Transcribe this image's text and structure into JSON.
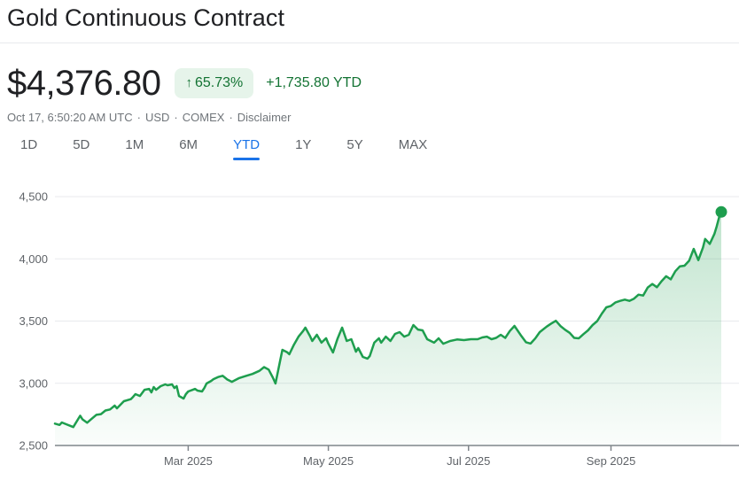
{
  "header": {
    "title": "Gold Continuous Contract"
  },
  "quote": {
    "price": "$4,376.80",
    "up_arrow": "↑",
    "change_percent": "65.73%",
    "change_absolute_ytd": "+1,735.80 YTD"
  },
  "meta": {
    "timestamp": "Oct 17, 6:50:20 AM UTC",
    "dot": "·",
    "currency": "USD",
    "exchange": "COMEX",
    "disclaimer_label": "Disclaimer"
  },
  "ranges": [
    {
      "id": "1d",
      "label": "1D",
      "active": false
    },
    {
      "id": "5d",
      "label": "5D",
      "active": false
    },
    {
      "id": "1m",
      "label": "1M",
      "active": false
    },
    {
      "id": "6m",
      "label": "6M",
      "active": false
    },
    {
      "id": "ytd",
      "label": "YTD",
      "active": true
    },
    {
      "id": "1y",
      "label": "1Y",
      "active": false
    },
    {
      "id": "5y",
      "label": "5Y",
      "active": false
    },
    {
      "id": "max",
      "label": "MAX",
      "active": false
    }
  ],
  "colors": {
    "accent_blue": "#1a73e8",
    "green_text": "#137333",
    "badge_bg": "#e6f4ea",
    "text_primary": "#202124",
    "text_secondary": "#5f6368",
    "text_tertiary": "#70757a",
    "grid": "#e8eaed",
    "axis": "#80868b"
  },
  "chart_data": {
    "type": "area",
    "series_name": "Gold Continuous Contract YTD",
    "x_unit": "day_of_year_2025",
    "x_domain": [
      2,
      292
    ],
    "ylim": [
      2500,
      4500
    ],
    "grid": true,
    "line_color": "#1e9e4e",
    "fill_top": "rgba(30,158,78,0.28)",
    "fill_bottom": "rgba(30,158,78,0.02)",
    "y_ticks": [
      {
        "value": 2500,
        "label": "2,500"
      },
      {
        "value": 3000,
        "label": "3,000"
      },
      {
        "value": 3500,
        "label": "3,500"
      },
      {
        "value": 4000,
        "label": "4,000"
      },
      {
        "value": 4500,
        "label": "4,500"
      }
    ],
    "x_ticks": [
      {
        "day": 60,
        "label": "Mar 2025"
      },
      {
        "day": 121,
        "label": "May 2025"
      },
      {
        "day": 182,
        "label": "Jul 2025"
      },
      {
        "day": 244,
        "label": "Sep 2025"
      }
    ],
    "last_point": {
      "day": 292,
      "value": 4376.8,
      "label": "$4,376.80"
    },
    "points": [
      [
        2,
        2676
      ],
      [
        4,
        2665
      ],
      [
        5,
        2685
      ],
      [
        7,
        2670
      ],
      [
        9,
        2655
      ],
      [
        10,
        2648
      ],
      [
        13,
        2739
      ],
      [
        14,
        2710
      ],
      [
        16,
        2683
      ],
      [
        18,
        2715
      ],
      [
        20,
        2746
      ],
      [
        22,
        2752
      ],
      [
        24,
        2781
      ],
      [
        26,
        2790
      ],
      [
        28,
        2820
      ],
      [
        29,
        2799
      ],
      [
        32,
        2856
      ],
      [
        35,
        2872
      ],
      [
        36,
        2891
      ],
      [
        37,
        2913
      ],
      [
        39,
        2898
      ],
      [
        41,
        2948
      ],
      [
        43,
        2955
      ],
      [
        44,
        2927
      ],
      [
        45,
        2970
      ],
      [
        46,
        2948
      ],
      [
        48,
        2977
      ],
      [
        50,
        2991
      ],
      [
        51,
        2984
      ],
      [
        53,
        2991
      ],
      [
        54,
        2962
      ],
      [
        55,
        2977
      ],
      [
        56,
        2898
      ],
      [
        58,
        2877
      ],
      [
        59,
        2913
      ],
      [
        60,
        2934
      ],
      [
        62,
        2948
      ],
      [
        63,
        2955
      ],
      [
        64,
        2941
      ],
      [
        66,
        2934
      ],
      [
        67,
        2962
      ],
      [
        68,
        2998
      ],
      [
        70,
        3019
      ],
      [
        71,
        3033
      ],
      [
        73,
        3050
      ],
      [
        75,
        3060
      ],
      [
        77,
        3030
      ],
      [
        79,
        3012
      ],
      [
        82,
        3040
      ],
      [
        85,
        3058
      ],
      [
        88,
        3075
      ],
      [
        91,
        3100
      ],
      [
        93,
        3130
      ],
      [
        95,
        3110
      ],
      [
        97,
        3040
      ],
      [
        98,
        2998
      ],
      [
        100,
        3180
      ],
      [
        101,
        3269
      ],
      [
        103,
        3250
      ],
      [
        104,
        3233
      ],
      [
        106,
        3310
      ],
      [
        108,
        3375
      ],
      [
        110,
        3420
      ],
      [
        111,
        3447
      ],
      [
        113,
        3380
      ],
      [
        114,
        3340
      ],
      [
        116,
        3390
      ],
      [
        118,
        3326
      ],
      [
        120,
        3362
      ],
      [
        121,
        3318
      ],
      [
        123,
        3247
      ],
      [
        125,
        3360
      ],
      [
        127,
        3447
      ],
      [
        129,
        3340
      ],
      [
        131,
        3354
      ],
      [
        133,
        3254
      ],
      [
        134,
        3283
      ],
      [
        136,
        3212
      ],
      [
        138,
        3198
      ],
      [
        139,
        3219
      ],
      [
        141,
        3326
      ],
      [
        143,
        3361
      ],
      [
        144,
        3326
      ],
      [
        146,
        3375
      ],
      [
        148,
        3340
      ],
      [
        150,
        3397
      ],
      [
        152,
        3411
      ],
      [
        154,
        3375
      ],
      [
        156,
        3390
      ],
      [
        158,
        3468
      ],
      [
        160,
        3432
      ],
      [
        162,
        3425
      ],
      [
        164,
        3354
      ],
      [
        167,
        3326
      ],
      [
        169,
        3361
      ],
      [
        171,
        3318
      ],
      [
        174,
        3340
      ],
      [
        177,
        3352
      ],
      [
        180,
        3347
      ],
      [
        183,
        3354
      ],
      [
        186,
        3354
      ],
      [
        188,
        3368
      ],
      [
        190,
        3375
      ],
      [
        192,
        3354
      ],
      [
        194,
        3365
      ],
      [
        196,
        3390
      ],
      [
        198,
        3365
      ],
      [
        200,
        3420
      ],
      [
        202,
        3461
      ],
      [
        205,
        3380
      ],
      [
        207,
        3330
      ],
      [
        209,
        3319
      ],
      [
        211,
        3360
      ],
      [
        213,
        3411
      ],
      [
        216,
        3455
      ],
      [
        218,
        3480
      ],
      [
        220,
        3502
      ],
      [
        222,
        3460
      ],
      [
        224,
        3430
      ],
      [
        226,
        3405
      ],
      [
        228,
        3365
      ],
      [
        230,
        3361
      ],
      [
        232,
        3395
      ],
      [
        234,
        3425
      ],
      [
        236,
        3468
      ],
      [
        238,
        3500
      ],
      [
        240,
        3560
      ],
      [
        242,
        3610
      ],
      [
        244,
        3622
      ],
      [
        246,
        3650
      ],
      [
        248,
        3662
      ],
      [
        250,
        3672
      ],
      [
        252,
        3662
      ],
      [
        254,
        3680
      ],
      [
        256,
        3712
      ],
      [
        258,
        3705
      ],
      [
        260,
        3770
      ],
      [
        262,
        3798
      ],
      [
        264,
        3772
      ],
      [
        266,
        3820
      ],
      [
        268,
        3860
      ],
      [
        270,
        3835
      ],
      [
        272,
        3900
      ],
      [
        274,
        3940
      ],
      [
        276,
        3945
      ],
      [
        278,
        3985
      ],
      [
        280,
        4080
      ],
      [
        282,
        3990
      ],
      [
        284,
        4090
      ],
      [
        285,
        4160
      ],
      [
        287,
        4120
      ],
      [
        289,
        4200
      ],
      [
        290,
        4260
      ],
      [
        291,
        4330
      ],
      [
        292,
        4376.8
      ]
    ]
  }
}
